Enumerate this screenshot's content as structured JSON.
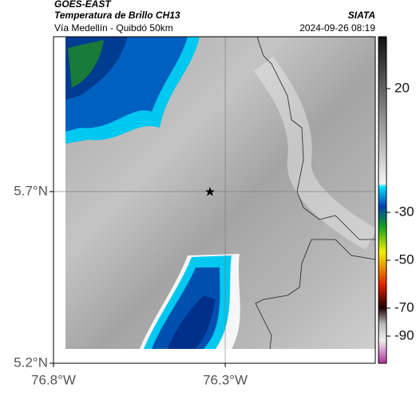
{
  "header": {
    "title": "GOES-EAST",
    "subtitle": "Temperatura de Brillo CH13",
    "source": "SIATA",
    "region": "Vía Medellín - Quibdó 50km",
    "datetime": "2024-09-26 08:19"
  },
  "map": {
    "xlim": [
      -76.8,
      -75.863
    ],
    "ylim": [
      5.2,
      6.151
    ],
    "xticks": [
      {
        "value": -76.8,
        "label": "76.8°W"
      },
      {
        "value": -76.3,
        "label": "76.3°W"
      }
    ],
    "yticks": [
      {
        "value": 5.7,
        "label": "5.7°N"
      },
      {
        "value": 5.2,
        "label": "5.2°N"
      }
    ]
  },
  "colorbar": {
    "ticks": [
      20,
      -30,
      -50,
      -70,
      -90
    ]
  }
}
